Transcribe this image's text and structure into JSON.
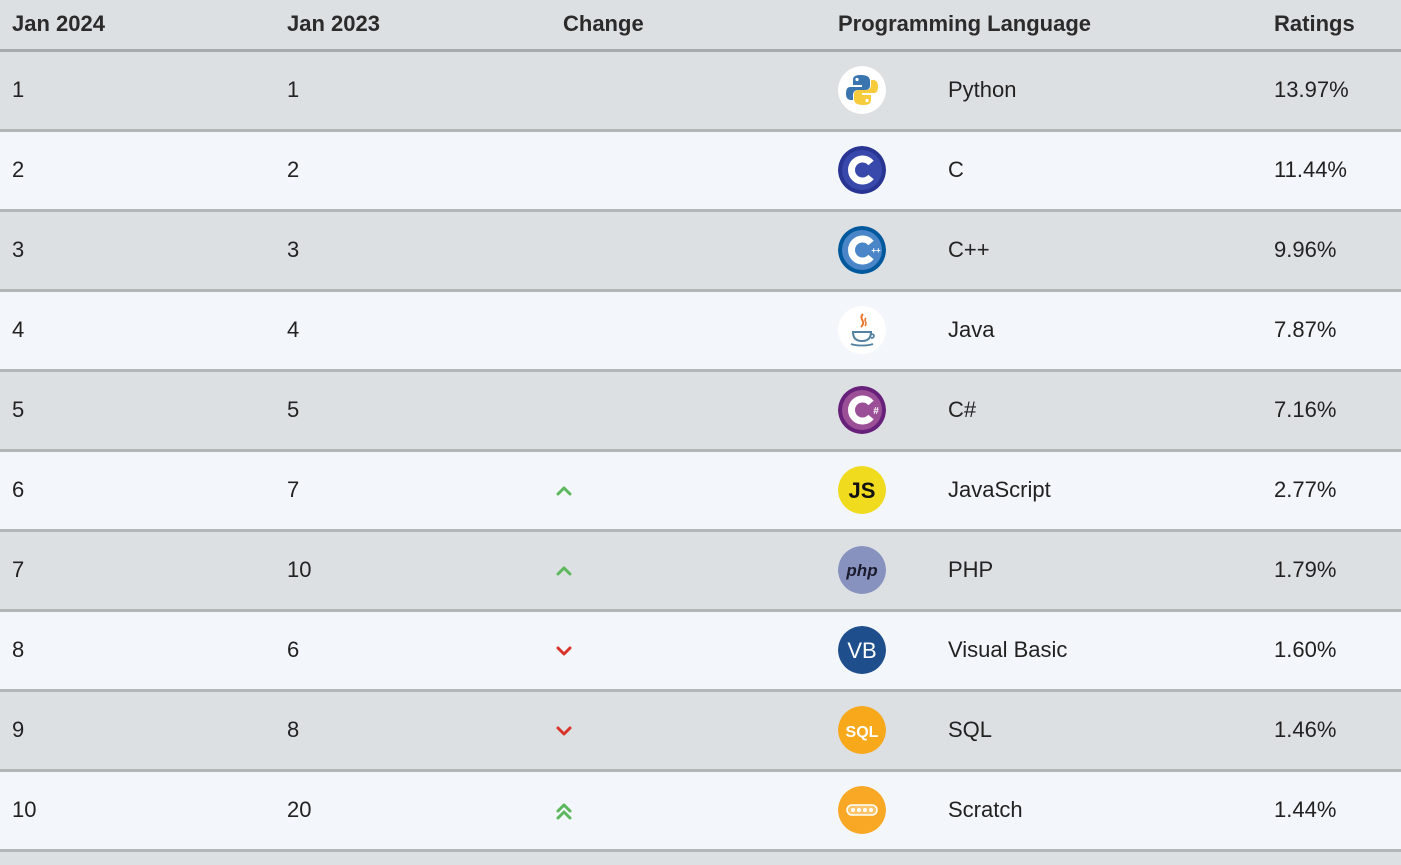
{
  "headers": {
    "current": "Jan 2024",
    "previous": "Jan 2023",
    "change": "Change",
    "language": "Programming Language",
    "ratings": "Ratings"
  },
  "rows": [
    {
      "current": "1",
      "previous": "1",
      "change": "none",
      "language": "Python",
      "icon": "python-logo-icon",
      "rating": "13.97%"
    },
    {
      "current": "2",
      "previous": "2",
      "change": "none",
      "language": "C",
      "icon": "c-logo-icon",
      "rating": "11.44%"
    },
    {
      "current": "3",
      "previous": "3",
      "change": "none",
      "language": "C++",
      "icon": "cpp-logo-icon",
      "rating": "9.96%"
    },
    {
      "current": "4",
      "previous": "4",
      "change": "none",
      "language": "Java",
      "icon": "java-logo-icon",
      "rating": "7.87%"
    },
    {
      "current": "5",
      "previous": "5",
      "change": "none",
      "language": "C#",
      "icon": "csharp-logo-icon",
      "rating": "7.16%"
    },
    {
      "current": "6",
      "previous": "7",
      "change": "up",
      "language": "JavaScript",
      "icon": "javascript-logo-icon",
      "rating": "2.77%"
    },
    {
      "current": "7",
      "previous": "10",
      "change": "up",
      "language": "PHP",
      "icon": "php-logo-icon",
      "rating": "1.79%"
    },
    {
      "current": "8",
      "previous": "6",
      "change": "down",
      "language": "Visual Basic",
      "icon": "visual-basic-logo-icon",
      "rating": "1.60%"
    },
    {
      "current": "9",
      "previous": "8",
      "change": "down",
      "language": "SQL",
      "icon": "sql-logo-icon",
      "rating": "1.46%"
    },
    {
      "current": "10",
      "previous": "20",
      "change": "double-up",
      "language": "Scratch",
      "icon": "scratch-logo-icon",
      "rating": "1.44%"
    }
  ],
  "colors": {
    "up": "#5cb85c",
    "down": "#d9342b",
    "header_bg": "#dde0e3",
    "row_odd": "#dde0e3",
    "row_even": "#f3f6fa"
  },
  "logos": {
    "js_text": "JS",
    "php_text": "php",
    "vb_text": "VB",
    "sql_text": "SQL",
    "cs_text": "#",
    "cpp_text": "++"
  }
}
